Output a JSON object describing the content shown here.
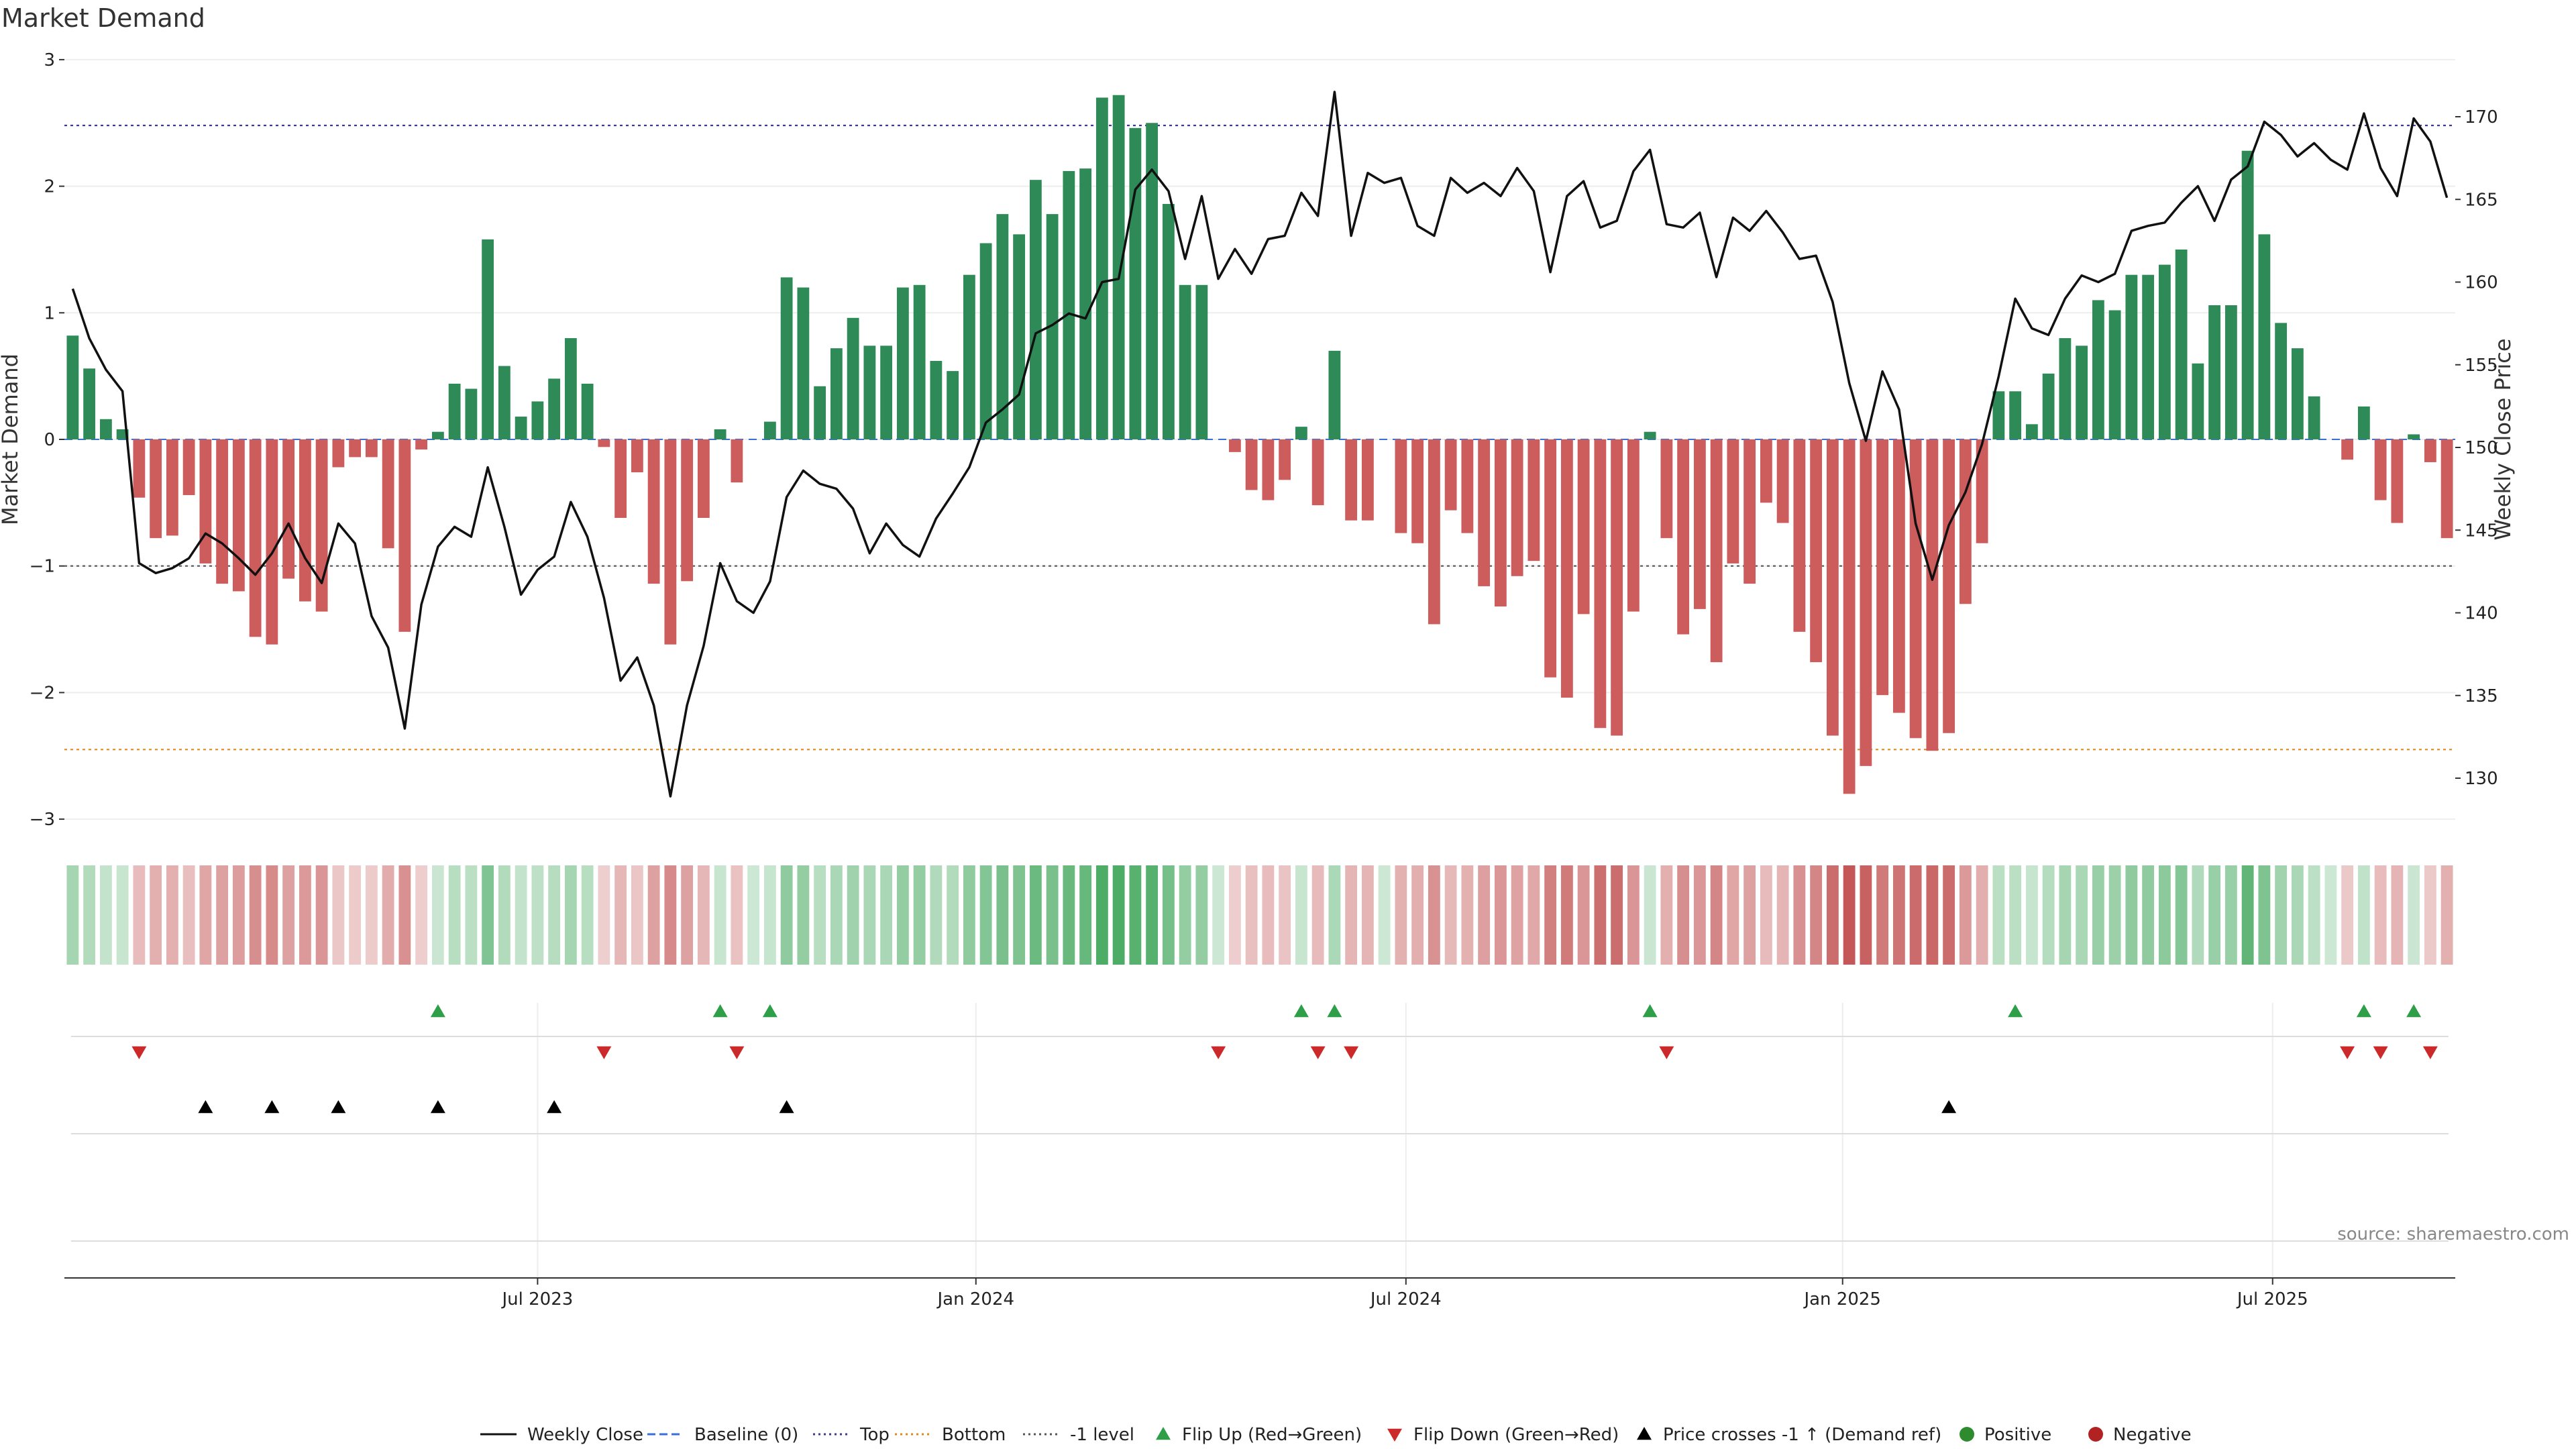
{
  "chart_data": {
    "type": "bar",
    "title": "Market Demand",
    "ylabel": "Market Demand",
    "y2label": "Weekly Close Price",
    "ylim": [
      -3,
      3
    ],
    "y2lim": [
      127,
      173
    ],
    "yticks": [
      "3",
      "2",
      "1",
      "0",
      "−1",
      "−2",
      "−3"
    ],
    "y2ticks": [
      "170",
      "165",
      "160",
      "155",
      "150",
      "145",
      "140",
      "135",
      "130"
    ],
    "x_ticks": [
      "Jul 2023",
      "Jan 2024",
      "Jul 2024",
      "Jan 2025",
      "Jul 2025"
    ],
    "reference_lines": {
      "top": 2.48,
      "bottom": -2.45,
      "minus_one": -1,
      "baseline": 0
    },
    "demand": [
      0.82,
      0.56,
      0.16,
      0.08,
      -0.46,
      -0.78,
      -0.76,
      -0.44,
      -0.98,
      -1.14,
      -1.2,
      -1.56,
      -1.62,
      -1.1,
      -1.28,
      -1.36,
      -0.22,
      -0.14,
      -0.14,
      -0.86,
      -1.52,
      -0.08,
      0.06,
      0.44,
      0.4,
      1.58,
      0.58,
      0.18,
      0.3,
      0.48,
      0.8,
      0.44,
      -0.06,
      -0.62,
      -0.26,
      -1.14,
      -1.62,
      -1.12,
      -0.62,
      0.08,
      -0.34,
      0,
      0.14,
      1.28,
      1.2,
      0.42,
      0.72,
      0.96,
      0.74,
      0.74,
      1.2,
      1.22,
      0.62,
      0.54,
      1.3,
      1.55,
      1.78,
      1.62,
      2.05,
      1.78,
      2.12,
      2.14,
      2.7,
      2.72,
      2.46,
      2.5,
      1.86,
      1.22,
      1.22,
      0,
      -0.1,
      -0.4,
      -0.48,
      -0.32,
      0.1,
      -0.52,
      0.7,
      -0.64,
      -0.64,
      0,
      -0.74,
      -0.82,
      -1.46,
      -0.56,
      -0.74,
      -1.16,
      -1.32,
      -1.08,
      -0.96,
      -1.88,
      -2.04,
      -1.38,
      -2.28,
      -2.34,
      -1.36,
      0.06,
      -0.78,
      -1.54,
      -1.34,
      -1.76,
      -0.98,
      -1.14,
      -0.5,
      -0.66,
      -1.52,
      -1.76,
      -2.34,
      -2.8,
      -2.58,
      -2.02,
      -2.16,
      -2.36,
      -2.46,
      -2.32,
      -1.3,
      -0.82,
      0.38,
      0.38,
      0.12,
      0.52,
      0.8,
      0.74,
      1.1,
      1.02,
      1.3,
      1.3,
      1.38,
      1.5,
      0.6,
      1.06,
      1.06,
      2.28,
      1.62,
      0.92,
      0.72,
      0.34,
      0,
      -0.16,
      0.26,
      -0.48,
      -0.66,
      0.04,
      -0.18,
      -0.78
    ],
    "close": [
      159.6,
      156.6,
      154.7,
      153.4,
      143.0,
      142.4,
      142.7,
      143.3,
      144.8,
      144.2,
      143.3,
      142.3,
      143.6,
      145.4,
      143.3,
      141.8,
      145.4,
      144.2,
      139.8,
      137.9,
      133.0,
      140.5,
      144.0,
      145.2,
      144.6,
      148.8,
      145.2,
      141.1,
      142.6,
      143.4,
      146.7,
      144.6,
      140.9,
      135.9,
      137.3,
      134.4,
      128.9,
      134.4,
      138.0,
      143.0,
      140.7,
      140.0,
      141.9,
      147.0,
      148.6,
      147.8,
      147.5,
      146.3,
      143.6,
      145.4,
      144.1,
      143.4,
      145.7,
      147.2,
      148.8,
      151.5,
      152.3,
      153.2,
      156.9,
      157.4,
      158.1,
      157.8,
      160.0,
      160.2,
      165.6,
      166.8,
      165.5,
      161.4,
      165.2,
      160.2,
      162.0,
      160.5,
      162.6,
      162.8,
      165.4,
      164.0,
      171.5,
      162.8,
      166.6,
      166.0,
      166.3,
      163.4,
      162.8,
      166.3,
      165.4,
      166.0,
      165.2,
      166.9,
      165.5,
      160.6,
      165.2,
      166.1,
      163.3,
      163.7,
      166.7,
      168.0,
      163.5,
      163.3,
      164.2,
      160.3,
      163.9,
      163.1,
      164.3,
      163.0,
      161.4,
      161.6,
      158.8,
      153.9,
      150.4,
      154.6,
      152.3,
      145.4,
      142.0,
      145.3,
      147.3,
      150.2,
      154.3,
      159.0,
      157.2,
      156.8,
      159.0,
      160.4,
      160.0,
      160.5,
      163.1,
      163.4,
      163.6,
      164.8,
      165.8,
      163.7,
      166.2,
      167.0,
      169.7,
      168.9,
      167.6,
      168.4,
      167.4,
      166.8,
      170.2,
      166.9,
      165.2,
      169.9,
      168.5,
      165.1
    ],
    "flip_up_indices": [
      22,
      39,
      42,
      74,
      76,
      95,
      117,
      138,
      141
    ],
    "flip_down_indices": [
      4,
      32,
      40,
      69,
      75,
      77,
      96,
      137,
      139,
      142
    ],
    "cross_up_indices": [
      8,
      12,
      16,
      22,
      29,
      43,
      113
    ],
    "legend": [
      {
        "label": "Weekly Close",
        "symbol": "line-solid",
        "color": "#111111"
      },
      {
        "label": "Baseline (0)",
        "symbol": "line-dashed",
        "color": "#3a6fd8"
      },
      {
        "label": "Top",
        "symbol": "line-dotted",
        "color": "#3b3b8f"
      },
      {
        "label": "Bottom",
        "symbol": "line-dotted",
        "color": "#e08a1e"
      },
      {
        "label": "-1 level",
        "symbol": "line-dotted",
        "color": "#555555"
      },
      {
        "label": "Flip Up (Red→Green)",
        "symbol": "triangle-up",
        "color": "#2e9e48"
      },
      {
        "label": "Flip Down (Green→Red)",
        "symbol": "triangle-down",
        "color": "#cc2a2a"
      },
      {
        "label": "Price crosses -1 ↑ (Demand ref)",
        "symbol": "triangle-up",
        "color": "#000000"
      },
      {
        "label": "Positive",
        "symbol": "circle",
        "color": "#2e8b2e"
      },
      {
        "label": "Negative",
        "symbol": "circle",
        "color": "#b22222"
      }
    ],
    "colors": {
      "positive": "#2e8b57",
      "negative": "#cd5c5c",
      "close": "#111111"
    },
    "source": "source: sharemaestro.com"
  }
}
